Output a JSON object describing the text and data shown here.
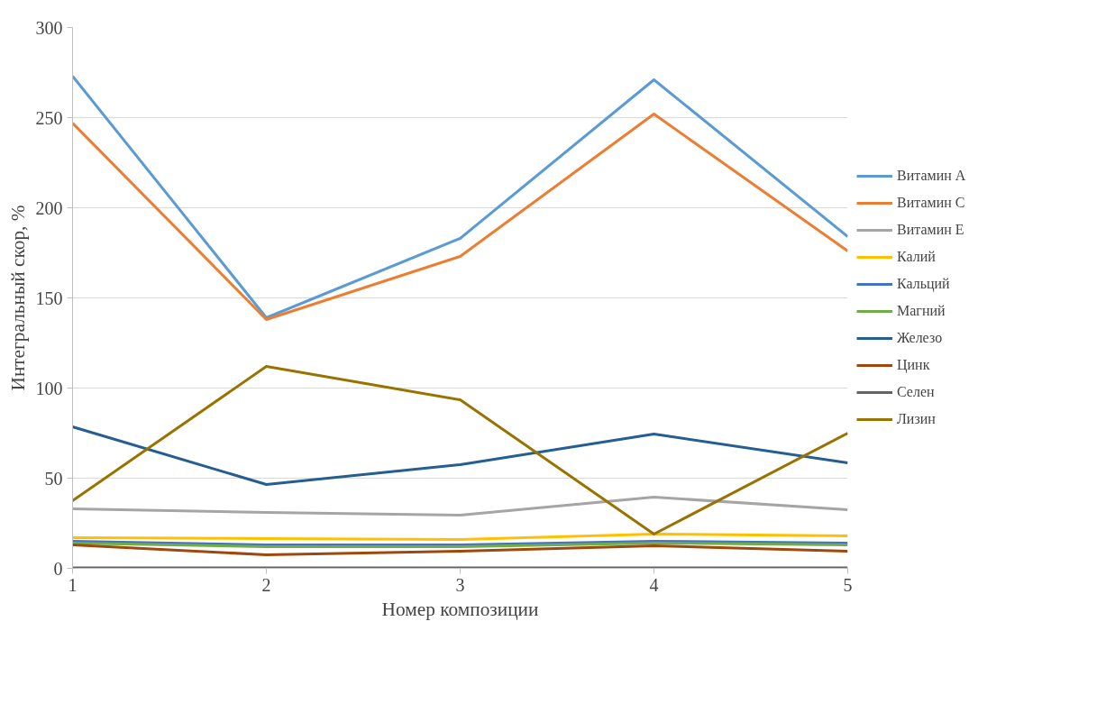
{
  "chart_data": {
    "type": "line",
    "xlabel": "Номер композиции",
    "ylabel": "Интегральный скор, %",
    "x": [
      1,
      2,
      3,
      4,
      5
    ],
    "xlim": [
      1,
      5
    ],
    "xticks": [
      1,
      2,
      3,
      4,
      5
    ],
    "ylim": [
      0,
      300
    ],
    "yticks": [
      0,
      50,
      100,
      150,
      200,
      250,
      300
    ],
    "grid": "y",
    "legend": "right",
    "marker": "none",
    "line_style": "solid",
    "series": [
      {
        "name": "Витамин А",
        "color": "#5b9bd5",
        "values": [
          273,
          139,
          183,
          271,
          184
        ]
      },
      {
        "name": "Витамин С",
        "color": "#ed7d31",
        "values": [
          247,
          138,
          173,
          252,
          176
        ]
      },
      {
        "name": "Витамин Е",
        "color": "#a5a5a5",
        "values": [
          33,
          31,
          29.5,
          39.5,
          32.5
        ]
      },
      {
        "name": "Калий",
        "color": "#ffc000",
        "values": [
          17,
          16.5,
          16,
          19,
          18
        ]
      },
      {
        "name": "Кальций",
        "color": "#4472c4",
        "values": [
          15,
          13,
          13,
          15,
          14
        ]
      },
      {
        "name": "Магний",
        "color": "#70ad47",
        "values": [
          14,
          12,
          12,
          14,
          13
        ]
      },
      {
        "name": "Железо",
        "color": "#255e91",
        "values": [
          78.5,
          46.5,
          57.5,
          74.5,
          58.5
        ]
      },
      {
        "name": "Цинк",
        "color": "#9e480e",
        "values": [
          13,
          7.5,
          9.5,
          12.5,
          9.5
        ]
      },
      {
        "name": "Селен",
        "color": "#636363",
        "values": [
          0.3,
          0.3,
          0.3,
          0.3,
          0.3
        ]
      },
      {
        "name": "Лизин",
        "color": "#997300",
        "values": [
          37.5,
          112,
          93.5,
          19,
          75
        ]
      }
    ]
  }
}
